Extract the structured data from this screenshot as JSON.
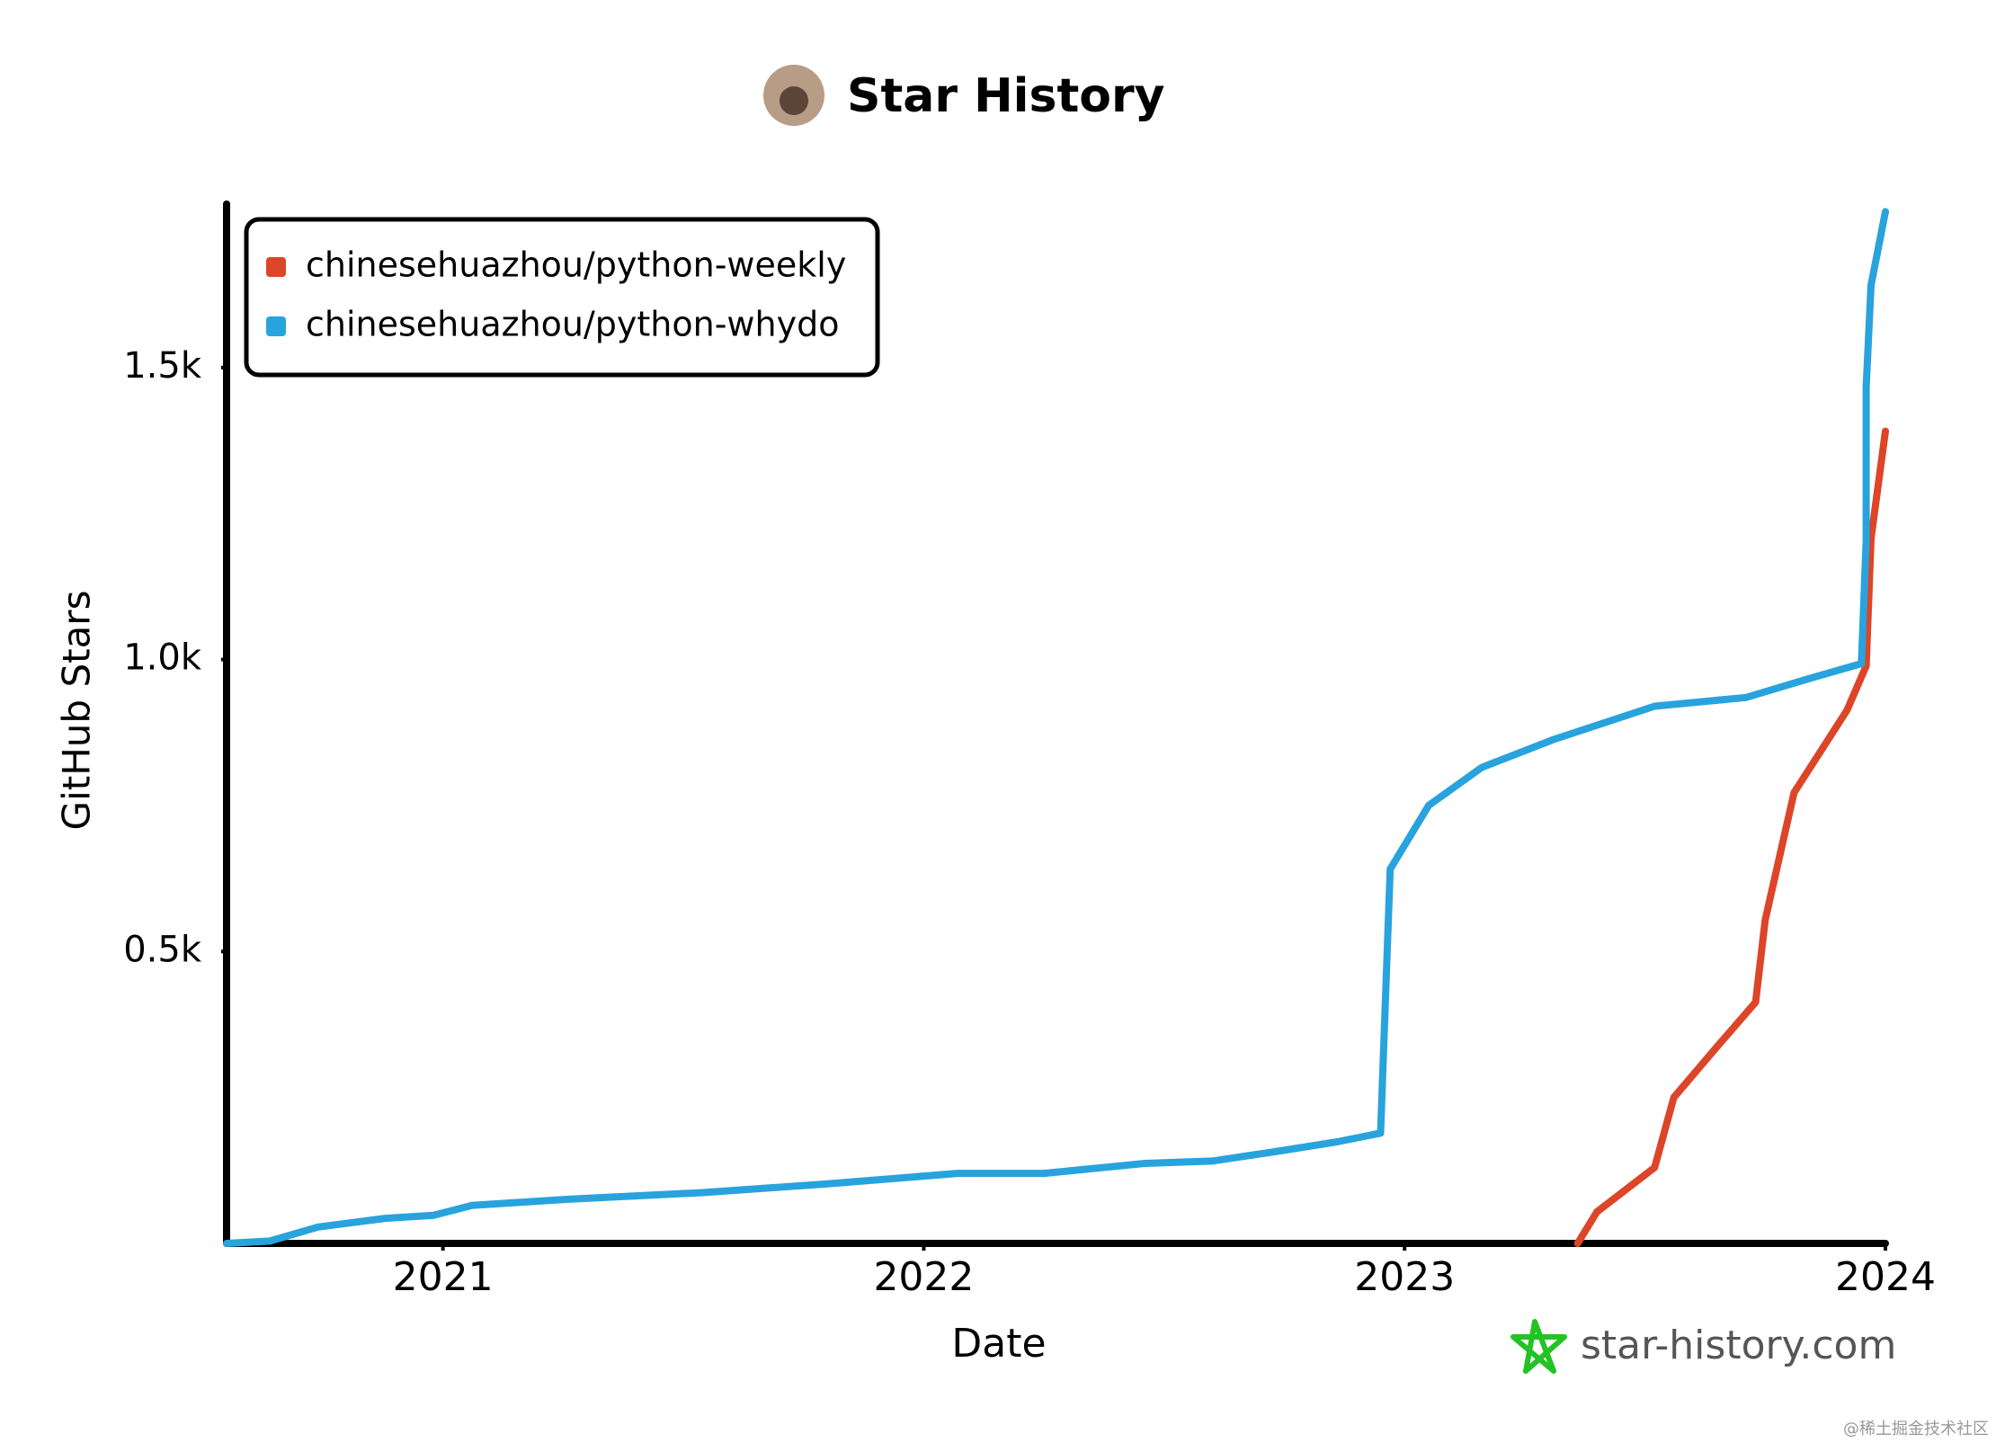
{
  "chart_data": {
    "type": "line",
    "title": "Star History",
    "x_label": "Date",
    "y_label": "GitHub Stars",
    "xlim": [
      2020.55,
      2024.0
    ],
    "xticks": [
      2021,
      2022,
      2023,
      2024
    ],
    "ylim": [
      0,
      1780
    ],
    "yticks": [
      {
        "value": 500,
        "label": "0.5k"
      },
      {
        "value": 1000,
        "label": "1.0k"
      },
      {
        "value": 1500,
        "label": "1.5k"
      }
    ],
    "grid": false,
    "legend": "upper left",
    "series": [
      {
        "name": "chinesehuazhou/python-weekly",
        "color": "#dd4528",
        "x": [
          2023.36,
          2023.4,
          2023.52,
          2023.56,
          2023.65,
          2023.73,
          2023.75,
          2023.81,
          2023.92,
          2023.96,
          2023.97,
          2024.0
        ],
        "values": [
          0,
          54,
          130,
          250,
          337,
          413,
          554,
          772,
          913,
          989,
          1207,
          1391
        ]
      },
      {
        "name": "chinesehuazhou/python-whydo",
        "color": "#28a3dd",
        "x": [
          2020.55,
          2020.64,
          2020.74,
          2020.88,
          2020.98,
          2021.06,
          2021.27,
          2021.54,
          2021.8,
          2022.07,
          2022.25,
          2022.46,
          2022.6,
          2022.73,
          2022.86,
          2022.95,
          2022.97,
          2023.05,
          2023.16,
          2023.31,
          2023.52,
          2023.71,
          2023.84,
          2023.95,
          2023.96,
          2023.96,
          2023.97,
          2024.0
        ],
        "values": [
          0,
          4,
          28,
          43,
          48,
          65,
          76,
          87,
          102,
          120,
          120,
          137,
          141,
          157,
          174,
          189,
          641,
          750,
          815,
          863,
          920,
          935,
          967,
          993,
          1204,
          1467,
          1641,
          1767
        ]
      }
    ],
    "source": "star-history.com",
    "watermark": "@稀土掘金技术社区"
  }
}
